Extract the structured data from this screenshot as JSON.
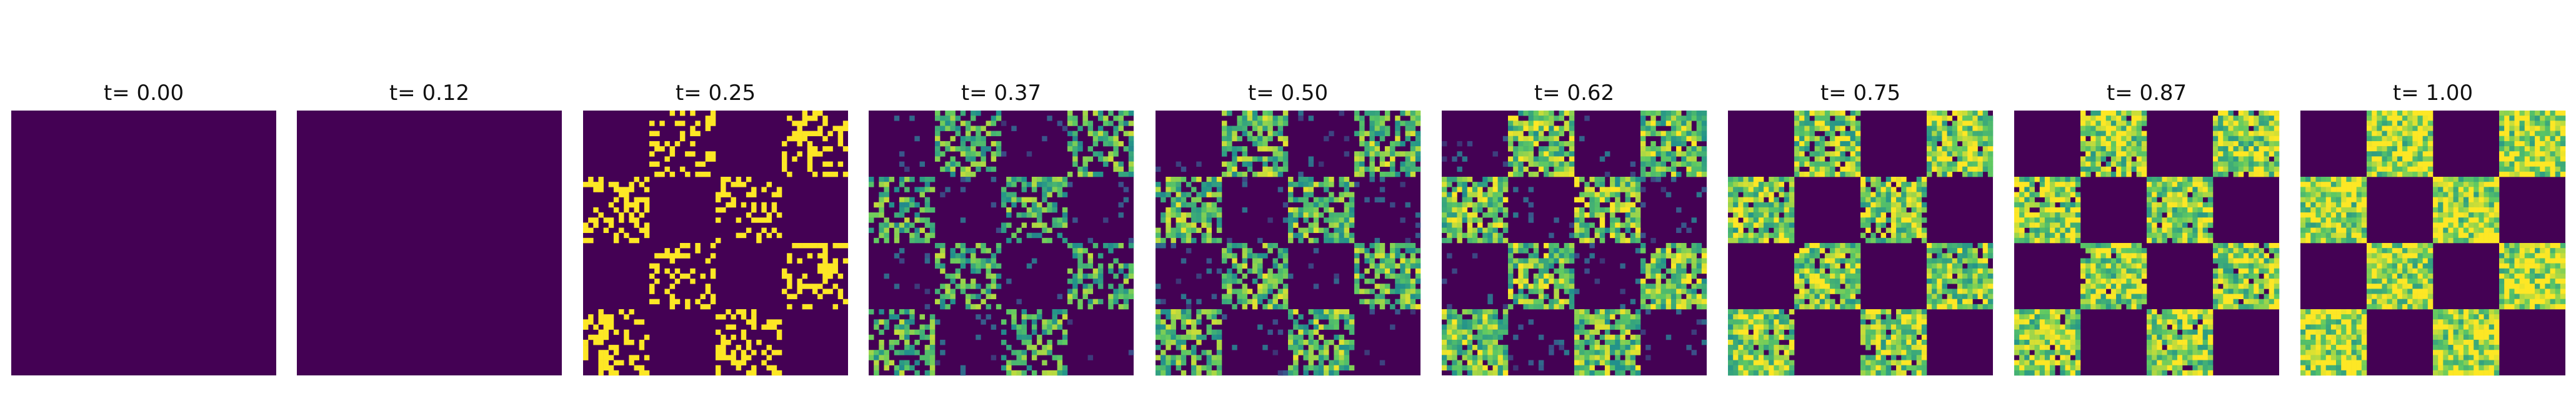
{
  "chart_data": {
    "type": "heatmap",
    "grid": false,
    "axes": "off",
    "colormap": "viridis",
    "colors": {
      "low": "#440154",
      "mid_low": "#31688e",
      "mid": "#21918c",
      "mid_high": "#5ec962",
      "high": "#fde725"
    },
    "pattern": "4x4 checkerboard",
    "panels": [
      {
        "title": "t= 0.00",
        "t": 0.0,
        "fill_density": 0.0
      },
      {
        "title": "t= 0.12",
        "t": 0.12,
        "fill_density": 0.0
      },
      {
        "title": "t= 0.25",
        "t": 0.25,
        "fill_density": 0.35
      },
      {
        "title": "t= 0.37",
        "t": 0.37,
        "fill_density": 0.55
      },
      {
        "title": "t= 0.50",
        "t": 0.5,
        "fill_density": 0.7
      },
      {
        "title": "t= 0.62",
        "t": 0.62,
        "fill_density": 0.82
      },
      {
        "title": "t= 0.75",
        "t": 0.75,
        "fill_density": 0.9
      },
      {
        "title": "t= 0.87",
        "t": 0.87,
        "fill_density": 0.95
      },
      {
        "title": "t= 1.00",
        "t": 1.0,
        "fill_density": 1.0
      }
    ]
  }
}
